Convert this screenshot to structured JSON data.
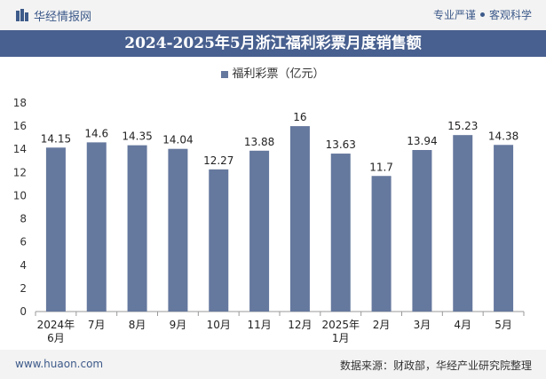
{
  "header": {
    "brand": "华经情报网",
    "tagline_left": "专业严谨",
    "tagline_right": "客观科学"
  },
  "title": "2024-2025年5月浙江福利彩票月度销售额",
  "footer": {
    "website": "www.huaon.com",
    "source": "数据来源：财政部，华经产业研究院整理"
  },
  "colors": {
    "bar": "#65789e",
    "title_bg": "#48608f",
    "brand": "#3d5a8a"
  },
  "chart_data": {
    "type": "bar",
    "categories": [
      [
        "2024年",
        "6月"
      ],
      [
        "7月"
      ],
      [
        "8月"
      ],
      [
        "9月"
      ],
      [
        "10月"
      ],
      [
        "11月"
      ],
      [
        "12月"
      ],
      [
        "2025年",
        "1月"
      ],
      [
        "2月"
      ],
      [
        "3月"
      ],
      [
        "4月"
      ],
      [
        "5月"
      ]
    ],
    "series": [
      {
        "name": "福利彩票（亿元）",
        "values": [
          14.15,
          14.6,
          14.35,
          14.04,
          12.27,
          13.88,
          16,
          13.63,
          11.7,
          13.94,
          15.23,
          14.38
        ]
      }
    ],
    "ylim": [
      0,
      18
    ],
    "yticks": [
      0,
      2,
      4,
      6,
      8,
      10,
      12,
      14,
      16,
      18
    ],
    "legend": "top-center",
    "grid": false
  }
}
